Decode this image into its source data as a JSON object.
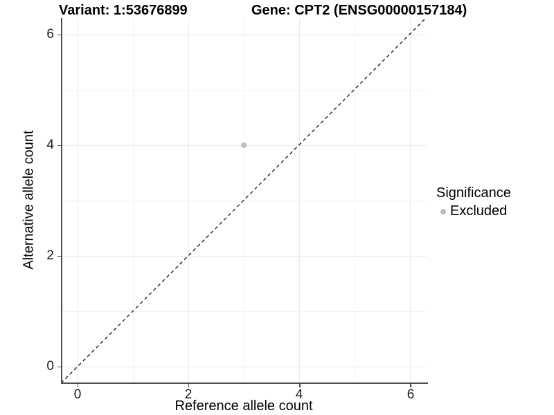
{
  "header": {
    "left_title": "Variant: 1:53676899",
    "right_title": "Gene: CPT2 (ENSG00000157184)"
  },
  "chart_data": {
    "type": "scatter",
    "titles": [
      "Variant: 1:53676899",
      "Gene: CPT2 (ENSG00000157184)"
    ],
    "xlabel": "Reference allele count",
    "ylabel": "Alternative allele count",
    "xlim": [
      -0.3,
      6.3
    ],
    "ylim": [
      -0.3,
      6.3
    ],
    "x_ticks": [
      "0",
      "2",
      "4",
      "6"
    ],
    "y_ticks": [
      "0",
      "2",
      "4",
      "6"
    ],
    "x_tick_values": [
      0,
      2,
      4,
      6
    ],
    "y_tick_values": [
      0,
      2,
      4,
      6
    ],
    "minor_grid_values": [
      1,
      3,
      5
    ],
    "grid": "on",
    "legend": {
      "title": "Significance",
      "position": "right",
      "entries": [
        {
          "label": "Excluded",
          "marker": "circle",
          "color": "#bebebe"
        }
      ]
    },
    "series": [
      {
        "name": "Excluded",
        "color": "#bebebe",
        "points": [
          [
            3,
            4
          ]
        ]
      }
    ],
    "identity_line": {
      "type": "y=x",
      "style": "dashed",
      "color": "#111111",
      "from": [
        -0.3,
        -0.3
      ],
      "to": [
        6.3,
        6.3
      ]
    },
    "colors": {
      "background": "#ffffff",
      "grid_major": "#e9e9e9",
      "grid_minor": "#f3f3f3",
      "axis_line": "#4d4d4d",
      "point": "#bebebe",
      "text": "#000000"
    }
  }
}
